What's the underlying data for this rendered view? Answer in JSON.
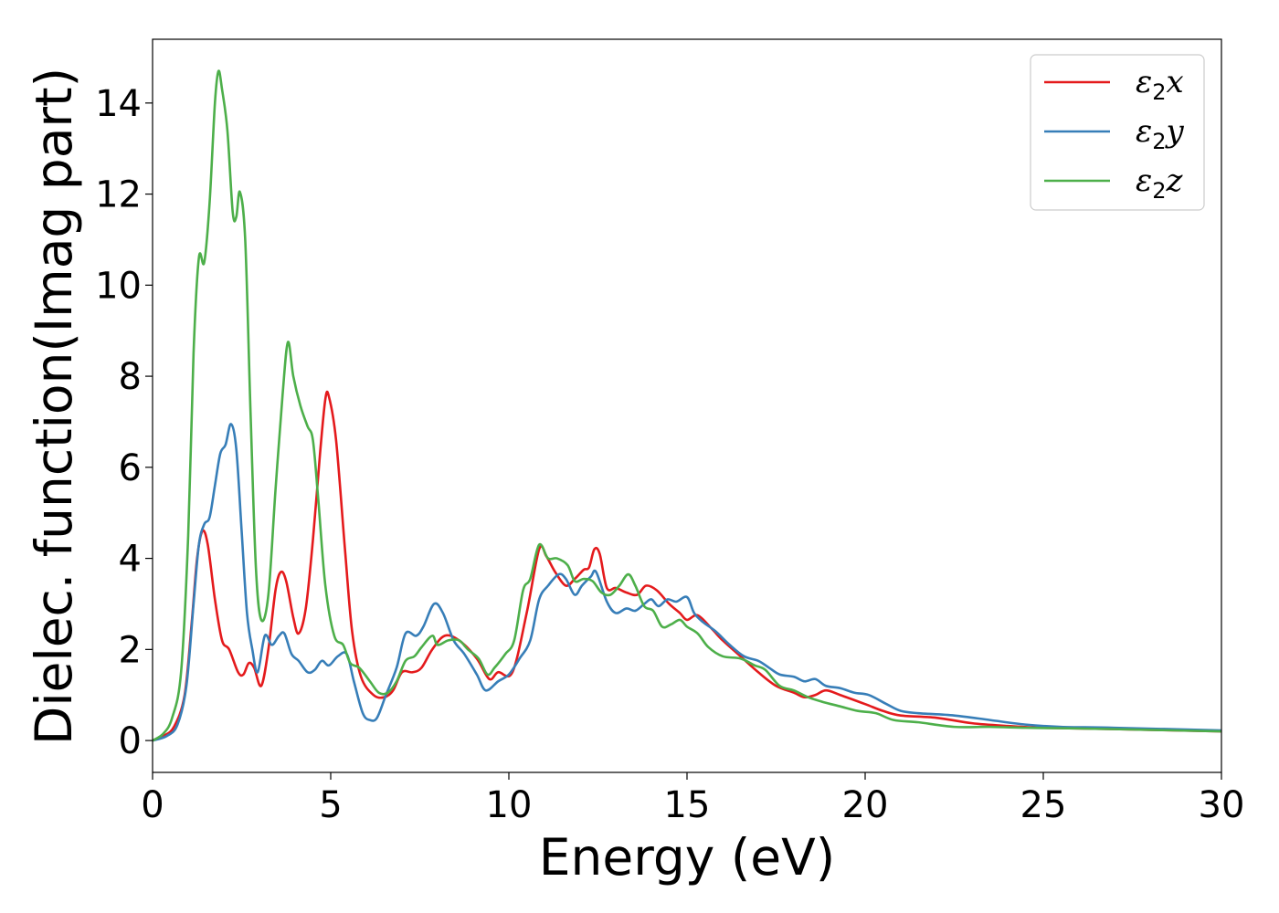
{
  "chart_data": {
    "type": "line",
    "title": "",
    "xlabel": "Energy (eV)",
    "ylabel": "Dielec. function(Imag part)",
    "xlim": [
      0,
      30
    ],
    "ylim": [
      -0.7,
      15.4
    ],
    "xticks": [
      0,
      5,
      10,
      15,
      20,
      25,
      30
    ],
    "yticks": [
      0,
      2,
      4,
      6,
      8,
      10,
      12,
      14
    ],
    "grid": false,
    "legend_position": "top-right",
    "series": [
      {
        "name": "ε2x",
        "legend_main": "ε",
        "legend_sub": "2",
        "legend_var": "x",
        "color": "#e41a1c",
        "points": [
          [
            0,
            0
          ],
          [
            0.3,
            0.1
          ],
          [
            0.6,
            0.3
          ],
          [
            0.9,
            1.0
          ],
          [
            1.1,
            2.6
          ],
          [
            1.25,
            4.0
          ],
          [
            1.4,
            4.6
          ],
          [
            1.55,
            4.3
          ],
          [
            1.75,
            3.1
          ],
          [
            1.95,
            2.2
          ],
          [
            2.15,
            2.0
          ],
          [
            2.4,
            1.5
          ],
          [
            2.55,
            1.45
          ],
          [
            2.7,
            1.7
          ],
          [
            2.85,
            1.6
          ],
          [
            3.05,
            1.2
          ],
          [
            3.25,
            2.0
          ],
          [
            3.45,
            3.3
          ],
          [
            3.6,
            3.7
          ],
          [
            3.75,
            3.5
          ],
          [
            3.95,
            2.7
          ],
          [
            4.1,
            2.35
          ],
          [
            4.3,
            2.9
          ],
          [
            4.5,
            4.4
          ],
          [
            4.7,
            6.3
          ],
          [
            4.85,
            7.5
          ],
          [
            4.95,
            7.55
          ],
          [
            5.15,
            6.6
          ],
          [
            5.4,
            4.2
          ],
          [
            5.6,
            2.4
          ],
          [
            5.85,
            1.4
          ],
          [
            6.2,
            1.0
          ],
          [
            6.5,
            0.95
          ],
          [
            6.75,
            1.1
          ],
          [
            7.0,
            1.5
          ],
          [
            7.3,
            1.5
          ],
          [
            7.55,
            1.6
          ],
          [
            7.85,
            2.0
          ],
          [
            8.2,
            2.3
          ],
          [
            8.6,
            2.2
          ],
          [
            9.1,
            1.8
          ],
          [
            9.45,
            1.35
          ],
          [
            9.7,
            1.5
          ],
          [
            10.1,
            1.5
          ],
          [
            10.5,
            2.8
          ],
          [
            10.85,
            4.2
          ],
          [
            11.05,
            4.05
          ],
          [
            11.3,
            3.7
          ],
          [
            11.6,
            3.4
          ],
          [
            11.85,
            3.55
          ],
          [
            12.1,
            3.75
          ],
          [
            12.25,
            3.8
          ],
          [
            12.4,
            4.2
          ],
          [
            12.55,
            4.1
          ],
          [
            12.75,
            3.35
          ],
          [
            13.0,
            3.35
          ],
          [
            13.3,
            3.25
          ],
          [
            13.6,
            3.2
          ],
          [
            13.85,
            3.4
          ],
          [
            14.15,
            3.3
          ],
          [
            14.5,
            3.0
          ],
          [
            14.8,
            2.8
          ],
          [
            15.0,
            2.65
          ],
          [
            15.3,
            2.75
          ],
          [
            15.7,
            2.45
          ],
          [
            16.0,
            2.2
          ],
          [
            16.5,
            1.85
          ],
          [
            17.0,
            1.5
          ],
          [
            17.5,
            1.2
          ],
          [
            18.0,
            1.05
          ],
          [
            18.3,
            0.95
          ],
          [
            18.6,
            1.0
          ],
          [
            18.9,
            1.1
          ],
          [
            19.3,
            1.0
          ],
          [
            20.0,
            0.8
          ],
          [
            20.5,
            0.65
          ],
          [
            21.0,
            0.55
          ],
          [
            22.0,
            0.5
          ],
          [
            23.0,
            0.38
          ],
          [
            24.0,
            0.32
          ],
          [
            25.0,
            0.28
          ],
          [
            27.0,
            0.25
          ],
          [
            30.0,
            0.2
          ]
        ]
      },
      {
        "name": "ε2y",
        "legend_main": "ε",
        "legend_sub": "2",
        "legend_var": "y",
        "color": "#377eb8",
        "points": [
          [
            0,
            0
          ],
          [
            0.4,
            0.1
          ],
          [
            0.7,
            0.35
          ],
          [
            0.95,
            1.2
          ],
          [
            1.15,
            3.0
          ],
          [
            1.3,
            4.3
          ],
          [
            1.45,
            4.75
          ],
          [
            1.6,
            4.9
          ],
          [
            1.75,
            5.6
          ],
          [
            1.9,
            6.3
          ],
          [
            2.05,
            6.5
          ],
          [
            2.2,
            6.95
          ],
          [
            2.35,
            6.4
          ],
          [
            2.5,
            4.6
          ],
          [
            2.65,
            2.8
          ],
          [
            2.8,
            2.0
          ],
          [
            2.95,
            1.5
          ],
          [
            3.15,
            2.3
          ],
          [
            3.35,
            2.1
          ],
          [
            3.55,
            2.3
          ],
          [
            3.7,
            2.35
          ],
          [
            3.9,
            1.9
          ],
          [
            4.1,
            1.75
          ],
          [
            4.35,
            1.5
          ],
          [
            4.55,
            1.55
          ],
          [
            4.75,
            1.75
          ],
          [
            4.95,
            1.65
          ],
          [
            5.2,
            1.85
          ],
          [
            5.45,
            1.9
          ],
          [
            5.65,
            1.3
          ],
          [
            5.9,
            0.6
          ],
          [
            6.1,
            0.45
          ],
          [
            6.3,
            0.5
          ],
          [
            6.55,
            1.0
          ],
          [
            6.85,
            1.6
          ],
          [
            7.1,
            2.35
          ],
          [
            7.4,
            2.3
          ],
          [
            7.6,
            2.5
          ],
          [
            7.9,
            3.0
          ],
          [
            8.15,
            2.8
          ],
          [
            8.45,
            2.2
          ],
          [
            8.75,
            1.9
          ],
          [
            9.1,
            1.45
          ],
          [
            9.35,
            1.1
          ],
          [
            9.7,
            1.3
          ],
          [
            10.0,
            1.45
          ],
          [
            10.3,
            1.8
          ],
          [
            10.6,
            2.2
          ],
          [
            10.85,
            3.1
          ],
          [
            11.1,
            3.4
          ],
          [
            11.4,
            3.65
          ],
          [
            11.6,
            3.55
          ],
          [
            11.85,
            3.2
          ],
          [
            12.05,
            3.4
          ],
          [
            12.3,
            3.6
          ],
          [
            12.45,
            3.7
          ],
          [
            12.75,
            3.05
          ],
          [
            13.0,
            2.8
          ],
          [
            13.3,
            2.9
          ],
          [
            13.55,
            2.85
          ],
          [
            13.8,
            3.0
          ],
          [
            14.0,
            3.1
          ],
          [
            14.2,
            2.95
          ],
          [
            14.45,
            3.1
          ],
          [
            14.7,
            3.05
          ],
          [
            15.0,
            3.15
          ],
          [
            15.2,
            2.8
          ],
          [
            15.45,
            2.6
          ],
          [
            15.8,
            2.4
          ],
          [
            16.2,
            2.1
          ],
          [
            16.6,
            1.85
          ],
          [
            17.0,
            1.75
          ],
          [
            17.3,
            1.6
          ],
          [
            17.6,
            1.45
          ],
          [
            18.0,
            1.4
          ],
          [
            18.3,
            1.3
          ],
          [
            18.6,
            1.35
          ],
          [
            18.9,
            1.2
          ],
          [
            19.3,
            1.15
          ],
          [
            19.7,
            1.05
          ],
          [
            20.1,
            1.0
          ],
          [
            20.6,
            0.8
          ],
          [
            21.0,
            0.65
          ],
          [
            21.5,
            0.6
          ],
          [
            22.5,
            0.55
          ],
          [
            23.5,
            0.45
          ],
          [
            24.5,
            0.35
          ],
          [
            25.5,
            0.3
          ],
          [
            27.0,
            0.28
          ],
          [
            30.0,
            0.22
          ]
        ]
      },
      {
        "name": "ε2z",
        "legend_main": "ε",
        "legend_sub": "2",
        "legend_var": "z",
        "color": "#4daf4a",
        "points": [
          [
            0,
            0
          ],
          [
            0.3,
            0.15
          ],
          [
            0.55,
            0.5
          ],
          [
            0.8,
            1.5
          ],
          [
            1.0,
            4.5
          ],
          [
            1.15,
            8.5
          ],
          [
            1.3,
            10.6
          ],
          [
            1.45,
            10.5
          ],
          [
            1.6,
            11.8
          ],
          [
            1.75,
            14.0
          ],
          [
            1.85,
            14.7
          ],
          [
            1.95,
            14.3
          ],
          [
            2.1,
            13.4
          ],
          [
            2.25,
            11.6
          ],
          [
            2.35,
            11.5
          ],
          [
            2.45,
            12.05
          ],
          [
            2.6,
            11.0
          ],
          [
            2.75,
            7.2
          ],
          [
            2.9,
            3.8
          ],
          [
            3.05,
            2.65
          ],
          [
            3.25,
            3.2
          ],
          [
            3.45,
            5.5
          ],
          [
            3.65,
            7.6
          ],
          [
            3.8,
            8.75
          ],
          [
            3.95,
            8.0
          ],
          [
            4.15,
            7.35
          ],
          [
            4.35,
            6.9
          ],
          [
            4.5,
            6.6
          ],
          [
            4.65,
            5.3
          ],
          [
            4.85,
            3.4
          ],
          [
            5.1,
            2.3
          ],
          [
            5.35,
            2.1
          ],
          [
            5.55,
            1.7
          ],
          [
            5.8,
            1.6
          ],
          [
            6.1,
            1.3
          ],
          [
            6.35,
            1.05
          ],
          [
            6.6,
            1.05
          ],
          [
            6.85,
            1.3
          ],
          [
            7.1,
            1.75
          ],
          [
            7.35,
            1.85
          ],
          [
            7.55,
            2.05
          ],
          [
            7.85,
            2.3
          ],
          [
            8.0,
            2.1
          ],
          [
            8.3,
            2.2
          ],
          [
            8.6,
            2.2
          ],
          [
            8.85,
            2.0
          ],
          [
            9.15,
            1.8
          ],
          [
            9.4,
            1.45
          ],
          [
            9.6,
            1.6
          ],
          [
            9.9,
            1.9
          ],
          [
            10.15,
            2.2
          ],
          [
            10.4,
            3.3
          ],
          [
            10.6,
            3.55
          ],
          [
            10.85,
            4.3
          ],
          [
            11.1,
            4.0
          ],
          [
            11.35,
            4.0
          ],
          [
            11.65,
            3.85
          ],
          [
            11.85,
            3.5
          ],
          [
            12.1,
            3.55
          ],
          [
            12.35,
            3.5
          ],
          [
            12.6,
            3.25
          ],
          [
            12.85,
            3.2
          ],
          [
            13.1,
            3.4
          ],
          [
            13.35,
            3.65
          ],
          [
            13.55,
            3.4
          ],
          [
            13.8,
            2.95
          ],
          [
            14.05,
            2.85
          ],
          [
            14.3,
            2.5
          ],
          [
            14.55,
            2.55
          ],
          [
            14.8,
            2.65
          ],
          [
            15.0,
            2.5
          ],
          [
            15.3,
            2.35
          ],
          [
            15.6,
            2.05
          ],
          [
            16.0,
            1.85
          ],
          [
            16.5,
            1.8
          ],
          [
            16.9,
            1.65
          ],
          [
            17.2,
            1.55
          ],
          [
            17.6,
            1.2
          ],
          [
            18.0,
            1.1
          ],
          [
            18.4,
            0.95
          ],
          [
            18.8,
            0.85
          ],
          [
            19.3,
            0.75
          ],
          [
            19.8,
            0.65
          ],
          [
            20.3,
            0.6
          ],
          [
            20.8,
            0.45
          ],
          [
            21.5,
            0.4
          ],
          [
            22.5,
            0.3
          ],
          [
            23.5,
            0.3
          ],
          [
            24.5,
            0.28
          ],
          [
            25.5,
            0.27
          ],
          [
            27.0,
            0.25
          ],
          [
            30.0,
            0.2
          ]
        ]
      }
    ]
  }
}
